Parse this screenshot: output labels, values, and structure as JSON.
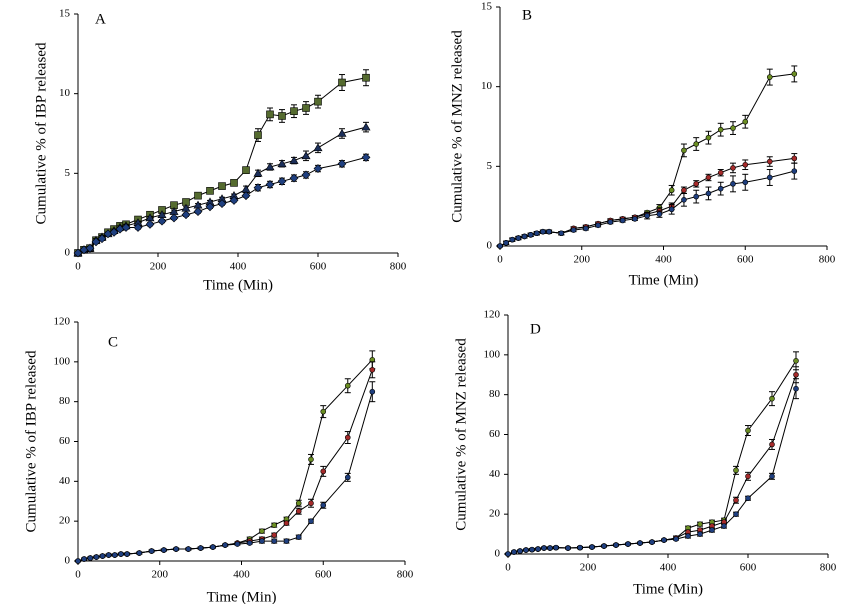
{
  "chart_data": [
    {
      "type": "line",
      "label": "A",
      "x_label": "Time (Min)",
      "y_label": "Cumulative % of IBP released",
      "x": [
        0,
        15,
        30,
        45,
        60,
        75,
        90,
        105,
        120,
        150,
        180,
        210,
        240,
        270,
        300,
        330,
        360,
        390,
        420,
        450,
        480,
        510,
        540,
        570,
        600,
        660,
        720
      ],
      "xlim": [
        0,
        800
      ],
      "xticks": [
        0,
        200,
        400,
        600,
        800
      ],
      "ylim": [
        0,
        15
      ],
      "yticks": [
        0,
        5,
        10,
        15
      ],
      "line_color": "#000000",
      "series": [
        {
          "color": "#556b2f",
          "marker": "square",
          "values": [
            0,
            0.2,
            0.3,
            0.8,
            1.0,
            1.3,
            1.5,
            1.7,
            1.8,
            2.1,
            2.4,
            2.7,
            3.0,
            3.2,
            3.6,
            3.9,
            4.2,
            4.4,
            5.2,
            7.4,
            8.7,
            8.6,
            8.9,
            9.1,
            9.5,
            10.7,
            11.0
          ],
          "errors": [
            0.05,
            0.1,
            0.1,
            0.1,
            0.1,
            0.1,
            0.1,
            0.1,
            0.1,
            0.1,
            0.1,
            0.1,
            0.1,
            0.1,
            0.1,
            0.1,
            0.1,
            0.1,
            0.2,
            0.4,
            0.4,
            0.4,
            0.4,
            0.4,
            0.4,
            0.5,
            0.5
          ]
        },
        {
          "color": "#1c2f5a",
          "marker": "triangle",
          "values": [
            0,
            0.2,
            0.3,
            0.8,
            1.0,
            1.2,
            1.4,
            1.6,
            1.7,
            1.9,
            2.2,
            2.4,
            2.6,
            2.8,
            3.0,
            3.2,
            3.4,
            3.6,
            4.0,
            5.0,
            5.4,
            5.6,
            5.8,
            6.1,
            6.6,
            7.5,
            7.9
          ],
          "errors": [
            0.05,
            0.1,
            0.1,
            0.1,
            0.1,
            0.1,
            0.1,
            0.1,
            0.1,
            0.1,
            0.1,
            0.1,
            0.1,
            0.1,
            0.1,
            0.1,
            0.1,
            0.1,
            0.2,
            0.2,
            0.2,
            0.2,
            0.2,
            0.3,
            0.3,
            0.3,
            0.3
          ]
        },
        {
          "color": "#1f3f7f",
          "marker": "diamond",
          "values": [
            0,
            0.2,
            0.3,
            0.7,
            0.9,
            1.2,
            1.3,
            1.5,
            1.6,
            1.6,
            1.8,
            2.0,
            2.2,
            2.4,
            2.6,
            2.9,
            3.1,
            3.3,
            3.6,
            4.1,
            4.3,
            4.5,
            4.7,
            4.9,
            5.3,
            5.6,
            6.0
          ],
          "errors": [
            0.05,
            0.1,
            0.1,
            0.1,
            0.1,
            0.1,
            0.1,
            0.1,
            0.1,
            0.1,
            0.1,
            0.1,
            0.1,
            0.1,
            0.1,
            0.1,
            0.1,
            0.1,
            0.1,
            0.2,
            0.2,
            0.2,
            0.2,
            0.2,
            0.2,
            0.2,
            0.2
          ]
        }
      ]
    },
    {
      "type": "line",
      "label": "B",
      "x_label": "Time (Min)",
      "y_label": "Cumulative % of MNZ released",
      "x": [
        0,
        15,
        30,
        45,
        60,
        75,
        90,
        105,
        120,
        150,
        180,
        210,
        240,
        270,
        300,
        330,
        360,
        390,
        420,
        450,
        480,
        510,
        540,
        570,
        600,
        660,
        720
      ],
      "xlim": [
        0,
        800
      ],
      "xticks": [
        0,
        200,
        400,
        600,
        800
      ],
      "ylim": [
        0,
        15
      ],
      "yticks": [
        0,
        5,
        10,
        15
      ],
      "line_color": "#000000",
      "series": [
        {
          "color": "#6b8e23",
          "marker": "circle",
          "values": [
            0,
            0.2,
            0.4,
            0.5,
            0.6,
            0.7,
            0.8,
            0.9,
            0.9,
            0.8,
            1.1,
            1.2,
            1.4,
            1.6,
            1.7,
            1.8,
            2.1,
            2.4,
            3.5,
            6.0,
            6.4,
            6.8,
            7.3,
            7.4,
            7.8,
            10.6,
            10.8
          ],
          "errors": [
            0.05,
            0.1,
            0.1,
            0.1,
            0.1,
            0.1,
            0.1,
            0.1,
            0.1,
            0.1,
            0.1,
            0.1,
            0.1,
            0.1,
            0.1,
            0.1,
            0.1,
            0.2,
            0.3,
            0.4,
            0.4,
            0.4,
            0.4,
            0.4,
            0.4,
            0.5,
            0.5
          ]
        },
        {
          "color": "#a52a2a",
          "marker": "circle",
          "values": [
            0,
            0.2,
            0.4,
            0.5,
            0.6,
            0.7,
            0.8,
            0.9,
            0.9,
            0.8,
            1.1,
            1.2,
            1.4,
            1.6,
            1.7,
            1.8,
            2.0,
            2.2,
            2.5,
            3.5,
            3.9,
            4.3,
            4.6,
            4.9,
            5.1,
            5.3,
            5.5
          ],
          "errors": [
            0.05,
            0.1,
            0.1,
            0.1,
            0.1,
            0.1,
            0.1,
            0.1,
            0.1,
            0.1,
            0.1,
            0.1,
            0.1,
            0.1,
            0.1,
            0.1,
            0.1,
            0.2,
            0.2,
            0.2,
            0.2,
            0.2,
            0.2,
            0.3,
            0.3,
            0.3,
            0.3
          ]
        },
        {
          "color": "#1f3f7f",
          "marker": "circle",
          "values": [
            0,
            0.2,
            0.4,
            0.5,
            0.6,
            0.7,
            0.8,
            0.9,
            0.9,
            0.8,
            1.0,
            1.1,
            1.3,
            1.5,
            1.6,
            1.7,
            1.9,
            2.0,
            2.3,
            2.9,
            3.1,
            3.3,
            3.6,
            3.9,
            4.0,
            4.3,
            4.7
          ],
          "errors": [
            0.05,
            0.1,
            0.1,
            0.1,
            0.1,
            0.1,
            0.1,
            0.1,
            0.1,
            0.1,
            0.1,
            0.1,
            0.1,
            0.1,
            0.1,
            0.1,
            0.2,
            0.2,
            0.3,
            0.4,
            0.4,
            0.4,
            0.4,
            0.5,
            0.5,
            0.5,
            0.5
          ]
        }
      ]
    },
    {
      "type": "line",
      "label": "C",
      "x_label": "Time (Min)",
      "y_label": "Cumulative % of IBP released",
      "x": [
        0,
        15,
        30,
        45,
        60,
        75,
        90,
        105,
        120,
        150,
        180,
        210,
        240,
        270,
        300,
        330,
        360,
        390,
        420,
        450,
        480,
        510,
        540,
        570,
        600,
        660,
        720
      ],
      "xlim": [
        0,
        800
      ],
      "xticks": [
        0,
        200,
        400,
        600,
        800
      ],
      "ylim": [
        0,
        120
      ],
      "yticks": [
        0,
        20,
        40,
        60,
        80,
        100,
        120
      ],
      "line_color": "#000000",
      "series": [
        {
          "color": "#6b8e23",
          "marker": "circle",
          "values": [
            0,
            1,
            1.5,
            2,
            2.5,
            3,
            3,
            3.5,
            3.5,
            4,
            5,
            5.5,
            6,
            6,
            6.5,
            7,
            8,
            9,
            11,
            15,
            18,
            21,
            29,
            51,
            75,
            88,
            101
          ],
          "errors": [
            0.3,
            0.5,
            0.5,
            0.5,
            0.5,
            0.5,
            0.5,
            0.5,
            0.5,
            0.5,
            0.5,
            0.5,
            0.5,
            0.5,
            0.5,
            0.5,
            0.5,
            0.5,
            1,
            1,
            1,
            1,
            1.5,
            2.5,
            3,
            3.5,
            4.5
          ]
        },
        {
          "color": "#a52a2a",
          "marker": "circle",
          "values": [
            0,
            1,
            1.5,
            2,
            2.5,
            3,
            3,
            3.5,
            3.5,
            4,
            5,
            5.5,
            6,
            6,
            6.5,
            7,
            8,
            9,
            10,
            11,
            13,
            19,
            25,
            29,
            45,
            62,
            96
          ],
          "errors": [
            0.3,
            0.5,
            0.5,
            0.5,
            0.5,
            0.5,
            0.5,
            0.5,
            0.5,
            0.5,
            0.5,
            0.5,
            0.5,
            0.5,
            0.5,
            0.5,
            0.5,
            0.5,
            1,
            1,
            1,
            1,
            1.5,
            2,
            2.5,
            3,
            4
          ]
        },
        {
          "color": "#1f3f7f",
          "marker": "circle",
          "values": [
            0,
            1,
            1.5,
            2,
            2.5,
            3,
            3,
            3.5,
            3.5,
            4,
            5,
            5.5,
            6,
            6,
            6.5,
            7,
            8,
            8.5,
            9,
            10,
            10,
            10,
            12,
            20,
            28,
            42,
            85
          ],
          "errors": [
            0.3,
            0.5,
            0.5,
            0.5,
            0.5,
            0.5,
            0.5,
            0.5,
            0.5,
            0.5,
            0.5,
            0.5,
            0.5,
            0.5,
            0.5,
            0.5,
            0.5,
            0.5,
            0.5,
            1,
            1,
            1,
            1,
            1,
            1.5,
            2,
            5
          ]
        }
      ]
    },
    {
      "type": "line",
      "label": "D",
      "x_label": "Time (Min)",
      "y_label": "Cumulative % of MNZ released",
      "x": [
        0,
        15,
        30,
        45,
        60,
        75,
        90,
        105,
        120,
        150,
        180,
        210,
        240,
        270,
        300,
        330,
        360,
        390,
        420,
        450,
        480,
        510,
        540,
        570,
        600,
        660,
        720
      ],
      "xlim": [
        0,
        800
      ],
      "xticks": [
        0,
        200,
        400,
        600,
        800
      ],
      "ylim": [
        0,
        120
      ],
      "yticks": [
        0,
        20,
        40,
        60,
        80,
        100,
        120
      ],
      "line_color": "#000000",
      "series": [
        {
          "color": "#6b8e23",
          "marker": "circle",
          "values": [
            0,
            1,
            1.5,
            2,
            2.2,
            2.5,
            3,
            3,
            3.2,
            3,
            3.2,
            3.5,
            4,
            4.5,
            5,
            5.5,
            6,
            7,
            8,
            13,
            15,
            16,
            17,
            42,
            62,
            78,
            97
          ],
          "errors": [
            0.3,
            0.5,
            0.5,
            0.5,
            0.5,
            0.5,
            0.5,
            0.5,
            0.5,
            0.5,
            0.5,
            0.5,
            0.5,
            0.5,
            0.5,
            0.5,
            0.5,
            0.5,
            1,
            1,
            1,
            1,
            1,
            2,
            2.5,
            3.5,
            4.5
          ]
        },
        {
          "color": "#a52a2a",
          "marker": "circle",
          "values": [
            0,
            1,
            1.5,
            2,
            2.2,
            2.5,
            3,
            3,
            3.2,
            3,
            3.2,
            3.5,
            4,
            4.5,
            5,
            5.5,
            6,
            7,
            8,
            11,
            12,
            14,
            16,
            27,
            39,
            55,
            90
          ],
          "errors": [
            0.3,
            0.5,
            0.5,
            0.5,
            0.5,
            0.5,
            0.5,
            0.5,
            0.5,
            0.5,
            0.5,
            0.5,
            0.5,
            0.5,
            0.5,
            0.5,
            0.5,
            0.5,
            1,
            1,
            1,
            1,
            1,
            1.5,
            2,
            2.5,
            4
          ]
        },
        {
          "color": "#1f3f7f",
          "marker": "circle",
          "values": [
            0,
            1,
            1.5,
            2,
            2.2,
            2.5,
            3,
            3,
            3.2,
            3,
            3.2,
            3.5,
            4,
            4.5,
            5,
            5.5,
            6,
            7,
            7.5,
            9,
            10,
            12,
            14,
            20,
            28,
            39,
            83
          ],
          "errors": [
            0.3,
            0.5,
            0.5,
            0.5,
            0.5,
            0.5,
            0.5,
            0.5,
            0.5,
            0.5,
            0.5,
            0.5,
            0.5,
            0.5,
            0.5,
            0.5,
            0.5,
            0.5,
            0.5,
            1,
            1,
            1,
            1,
            1,
            1,
            1.5,
            5
          ]
        }
      ]
    }
  ]
}
